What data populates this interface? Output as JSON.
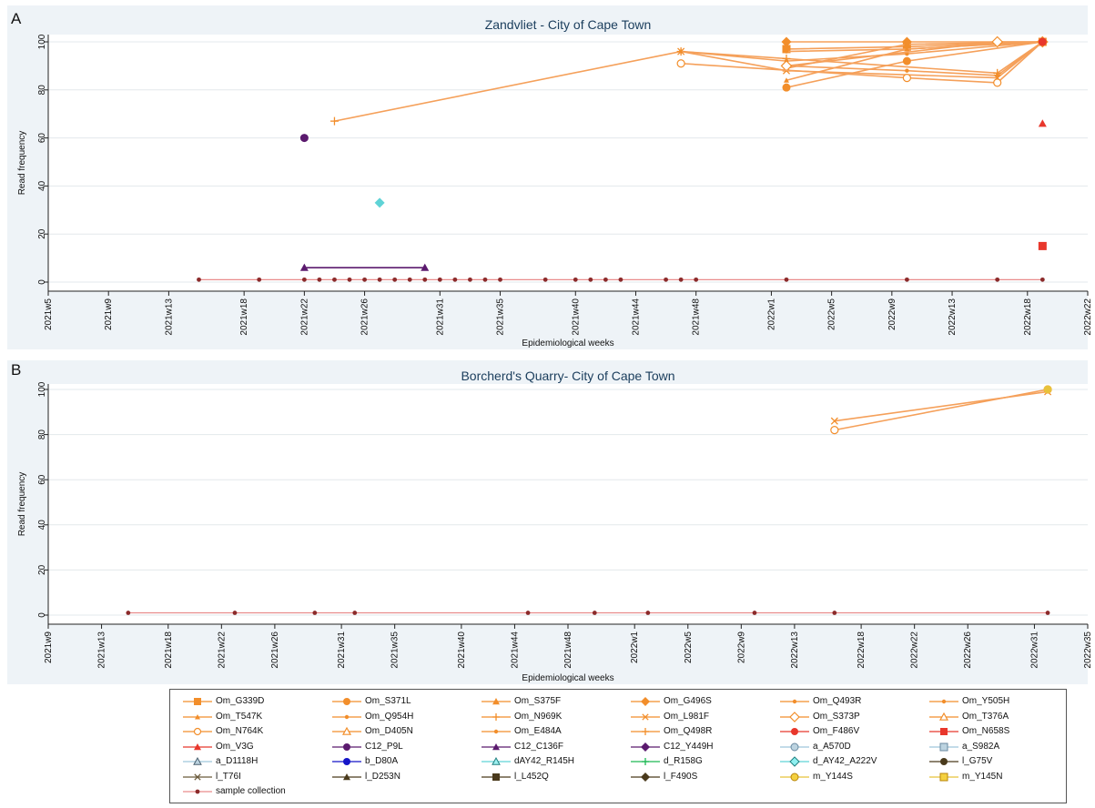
{
  "colors": {
    "orange": "#F28E2B",
    "orange_light": "#F5A05A",
    "red": "#E8372C",
    "purple": "#5B1A6E",
    "cyan": "#5FD3D6",
    "darkred": "#8B2A2A",
    "sample_line": "#E98C8C",
    "panel_bg": "#EEF3F7",
    "grid": "#ffffff"
  },
  "chart_data": [
    {
      "type": "line",
      "panel_letter": "A",
      "title": "Zandvliet - City of Cape Town",
      "xlabel": "Epidemiological weeks",
      "ylabel": "Read frequency",
      "ylim": [
        0,
        100
      ],
      "yticks": [
        0,
        20,
        40,
        60,
        80,
        100
      ],
      "xticks": [
        "2021w5",
        "2021w9",
        "2021w13",
        "2021w18",
        "2021w22",
        "2021w26",
        "2021w31",
        "2021w35",
        "2021w40",
        "2021w44",
        "2021w48",
        "2022w1",
        "2022w5",
        "2022w9",
        "2022w13",
        "2022w18",
        "2022w22"
      ],
      "grid": true,
      "series": [
        {
          "name": "Om_G339D",
          "marker": "square",
          "points": [
            [
              "2022w2",
              97
            ],
            [
              "2022w10",
              98
            ],
            [
              "2022w19",
              100
            ]
          ]
        },
        {
          "name": "Om_S371L",
          "marker": "circle",
          "points": [
            [
              "2022w2",
              81
            ],
            [
              "2022w10",
              92
            ],
            [
              "2022w19",
              100
            ]
          ]
        },
        {
          "name": "Om_S375F",
          "marker": "triangle",
          "points": [
            [
              "2022w2",
              89
            ],
            [
              "2022w10",
              99
            ],
            [
              "2022w19",
              100
            ]
          ]
        },
        {
          "name": "Om_G496S",
          "marker": "diamond",
          "points": [
            [
              "2022w2",
              100
            ],
            [
              "2022w10",
              100
            ],
            [
              "2022w19",
              100
            ]
          ]
        },
        {
          "name": "Om_Q493R",
          "marker": "dot",
          "points": [
            [
              "2022w2",
              90
            ],
            [
              "2022w10",
              88
            ],
            [
              "2022w16",
              86
            ],
            [
              "2022w19",
              100
            ]
          ]
        },
        {
          "name": "Om_Y505H",
          "marker": "dot",
          "points": [
            [
              "2022w2",
              96
            ],
            [
              "2022w10",
              97
            ],
            [
              "2022w19",
              100
            ]
          ]
        },
        {
          "name": "Om_T547K",
          "marker": "tri-small",
          "points": [
            [
              "2022w2",
              84
            ],
            [
              "2022w10",
              97
            ],
            [
              "2022w19",
              100
            ]
          ]
        },
        {
          "name": "Om_Q954H",
          "marker": "dot",
          "points": [
            [
              "2021w47",
              96
            ],
            [
              "2022w2",
              92
            ],
            [
              "2022w10",
              95
            ],
            [
              "2022w19",
              100
            ]
          ]
        },
        {
          "name": "Om_N969K",
          "marker": "plus",
          "points": [
            [
              "2021w24",
              67
            ],
            [
              "2021w47",
              96
            ],
            [
              "2022w2",
              93
            ],
            [
              "2022w16",
              87
            ],
            [
              "2022w19",
              100
            ]
          ]
        },
        {
          "name": "Om_L981F",
          "marker": "x",
          "points": [
            [
              "2021w47",
              96
            ],
            [
              "2022w2",
              88
            ],
            [
              "2022w16",
              85
            ],
            [
              "2022w19",
              100
            ]
          ]
        },
        {
          "name": "Om_S373P",
          "marker": "diamond-open",
          "points": [
            [
              "2022w2",
              90
            ],
            [
              "2022w16",
              100
            ],
            [
              "2022w19",
              100
            ]
          ]
        },
        {
          "name": "Om_N764K",
          "marker": "circle-open",
          "points": [
            [
              "2021w47",
              91
            ],
            [
              "2022w10",
              85
            ],
            [
              "2022w16",
              83
            ],
            [
              "2022w19",
              100
            ]
          ]
        },
        {
          "name": "Om_F486V",
          "marker": "circle",
          "color": "red",
          "points": [
            [
              "2022w19",
              100
            ]
          ]
        },
        {
          "name": "Om_N658S",
          "marker": "square",
          "color": "red",
          "points": [
            [
              "2022w19",
              15
            ]
          ]
        },
        {
          "name": "Om_V3G",
          "marker": "triangle",
          "color": "red",
          "points": [
            [
              "2022w19",
              66
            ]
          ]
        },
        {
          "name": "C12_P9L",
          "marker": "circle",
          "color": "purple",
          "points": [
            [
              "2021w22",
              60
            ]
          ]
        },
        {
          "name": "C12_C136F",
          "marker": "triangle",
          "color": "purple",
          "points": [
            [
              "2021w22",
              6
            ],
            [
              "2021w30",
              6
            ]
          ]
        },
        {
          "name": "d_AY42_A222V",
          "marker": "diamond",
          "color": "cyan",
          "points": [
            [
              "2021w27",
              33
            ]
          ]
        }
      ],
      "sample_collection": [
        "2021w15",
        "2021w19",
        "2021w22",
        "2021w23",
        "2021w24",
        "2021w25",
        "2021w26",
        "2021w27",
        "2021w28",
        "2021w29",
        "2021w30",
        "2021w31",
        "2021w32",
        "2021w33",
        "2021w34",
        "2021w35",
        "2021w38",
        "2021w40",
        "2021w41",
        "2021w42",
        "2021w43",
        "2021w46",
        "2021w47",
        "2021w48",
        "2022w2",
        "2022w10",
        "2022w16",
        "2022w19"
      ]
    },
    {
      "type": "line",
      "panel_letter": "B",
      "title": "Borcherd's Quarry- City of Cape Town",
      "xlabel": "Epidemiological weeks",
      "ylabel": "Read frequency",
      "ylim": [
        0,
        100
      ],
      "yticks": [
        0,
        20,
        40,
        60,
        80,
        100
      ],
      "xticks": [
        "2021w9",
        "2021w13",
        "2021w18",
        "2021w22",
        "2021w26",
        "2021w31",
        "2021w35",
        "2021w40",
        "2021w44",
        "2021w48",
        "2022w1",
        "2022w5",
        "2022w9",
        "2022w13",
        "2022w18",
        "2022w22",
        "2022w26",
        "2022w31",
        "2022w35"
      ],
      "grid": true,
      "series": [
        {
          "name": "l_T76I",
          "marker": "x",
          "color": "orange",
          "points": [
            [
              "2022w16",
              86
            ],
            [
              "2022w32",
              99
            ]
          ]
        },
        {
          "name": "m_Y144S",
          "marker": "circle-open",
          "color": "orange",
          "points": [
            [
              "2022w16",
              82
            ],
            [
              "2022w32",
              100
            ]
          ]
        },
        {
          "name": "m_Y145N",
          "marker": "circle",
          "color": "gold",
          "points": [
            [
              "2022w32",
              100
            ]
          ]
        }
      ],
      "sample_collection": [
        "2021w15",
        "2021w23",
        "2021w29",
        "2021w32",
        "2021w45",
        "2021w50",
        "2022w2",
        "2022w10",
        "2022w16",
        "2022w32"
      ]
    }
  ],
  "legend": {
    "items": [
      {
        "label": "Om_G339D",
        "color": "#F28E2B",
        "marker": "square"
      },
      {
        "label": "Om_S371L",
        "color": "#F28E2B",
        "marker": "circle"
      },
      {
        "label": "Om_S375F",
        "color": "#F28E2B",
        "marker": "triangle"
      },
      {
        "label": "Om_G496S",
        "color": "#F28E2B",
        "marker": "diamond"
      },
      {
        "label": "Om_Q493R",
        "color": "#F28E2B",
        "marker": "dot"
      },
      {
        "label": "Om_Y505H",
        "color": "#F28E2B",
        "marker": "dot"
      },
      {
        "label": "Om_T547K",
        "color": "#F28E2B",
        "marker": "tri-small"
      },
      {
        "label": "Om_Q954H",
        "color": "#F28E2B",
        "marker": "dot"
      },
      {
        "label": "Om_N969K",
        "color": "#F28E2B",
        "marker": "plus"
      },
      {
        "label": "Om_L981F",
        "color": "#F28E2B",
        "marker": "x"
      },
      {
        "label": "Om_S373P",
        "color": "#F28E2B",
        "marker": "diamond-open"
      },
      {
        "label": "Om_T376A",
        "color": "#F28E2B",
        "marker": "triangle-open"
      },
      {
        "label": "Om_N764K",
        "color": "#F28E2B",
        "marker": "circle-open"
      },
      {
        "label": "Om_D405N",
        "color": "#F28E2B",
        "marker": "triangle-open"
      },
      {
        "label": "Om_E484A",
        "color": "#F28E2B",
        "marker": "dot"
      },
      {
        "label": "Om_Q498R",
        "color": "#F28E2B",
        "marker": "plus"
      },
      {
        "label": "Om_F486V",
        "color": "#E8372C",
        "marker": "circle"
      },
      {
        "label": "Om_N658S",
        "color": "#E8372C",
        "marker": "square"
      },
      {
        "label": "Om_V3G",
        "color": "#E8372C",
        "marker": "triangle"
      },
      {
        "label": "C12_P9L",
        "color": "#5B1A6E",
        "marker": "circle"
      },
      {
        "label": "C12_C136F",
        "color": "#5B1A6E",
        "marker": "triangle"
      },
      {
        "label": "C12_Y449H",
        "color": "#5B1A6E",
        "marker": "diamond"
      },
      {
        "label": "a_A570D",
        "color": "#9FC7DC",
        "marker": "circle-grey"
      },
      {
        "label": "a_S982A",
        "color": "#9FC7DC",
        "marker": "square-grey"
      },
      {
        "label": "a_D1118H",
        "color": "#9FC7DC",
        "marker": "triangle-grey"
      },
      {
        "label": "b_D80A",
        "color": "#1515C8",
        "marker": "circle"
      },
      {
        "label": "dAY42_R145H",
        "color": "#5FD3D6",
        "marker": "triangle-cyan"
      },
      {
        "label": "d_R158G",
        "color": "#1DB954",
        "marker": "plus"
      },
      {
        "label": "d_AY42_A222V",
        "color": "#5FD3D6",
        "marker": "diamond-cyan"
      },
      {
        "label": "l_G75V",
        "color": "#4A3A1C",
        "marker": "circle"
      },
      {
        "label": "l_T76I",
        "color": "#6B5A3A",
        "marker": "x"
      },
      {
        "label": "l_D253N",
        "color": "#4A3A1C",
        "marker": "triangle"
      },
      {
        "label": "l_L452Q",
        "color": "#4A3A1C",
        "marker": "square"
      },
      {
        "label": "l_F490S",
        "color": "#4A3A1C",
        "marker": "diamond"
      },
      {
        "label": "m_Y144S",
        "color": "#E8C23A",
        "marker": "circle-gold"
      },
      {
        "label": "m_Y145N",
        "color": "#E8C23A",
        "marker": "square-gold"
      },
      {
        "label": "sample collection",
        "color": "#E98C8C",
        "marker": "dot-darkred"
      }
    ]
  }
}
